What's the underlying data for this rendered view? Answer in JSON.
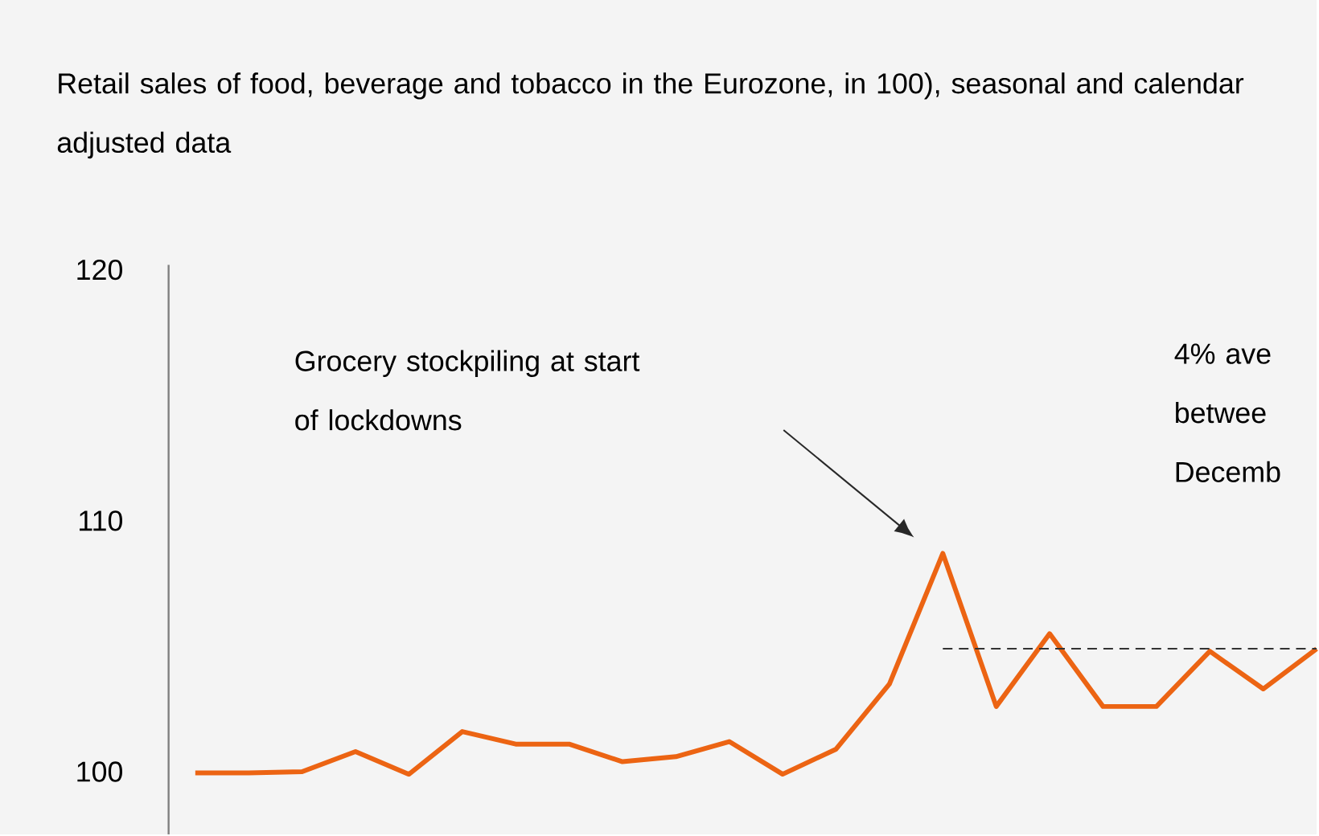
{
  "chart_data": {
    "type": "line",
    "subtitle": "Retail sales of food, beverage and tobacco in the Eurozone, in 100), seasonal and calendar adjusted data",
    "categories": [
      null,
      null,
      null,
      null,
      null,
      null,
      null,
      null,
      null,
      null,
      null,
      null,
      null,
      null,
      null,
      null,
      null,
      null,
      null,
      null,
      null,
      null
    ],
    "series": [
      {
        "color": "#ec6413",
        "values": [
          99.95,
          99.95,
          100.0,
          100.8,
          99.9,
          101.6,
          101.1,
          101.1,
          100.4,
          100.6,
          101.2,
          99.9,
          100.9,
          103.5,
          108.7,
          102.6,
          105.5,
          102.6,
          102.6,
          104.8,
          103.3,
          104.9
        ]
      }
    ],
    "ylim": [
      97.5,
      120.2
    ],
    "yticks": [
      100,
      110,
      120
    ],
    "ref_lines": [
      {
        "axis": "y",
        "value": 104.9,
        "color": "#333333",
        "line_style": "dashed"
      }
    ],
    "annotations": [
      "Grocery stockpiling at start of lockdowns",
      "4% ave betwee Decemb"
    ],
    "grid": false,
    "marker": "none",
    "line_style": "solid"
  }
}
